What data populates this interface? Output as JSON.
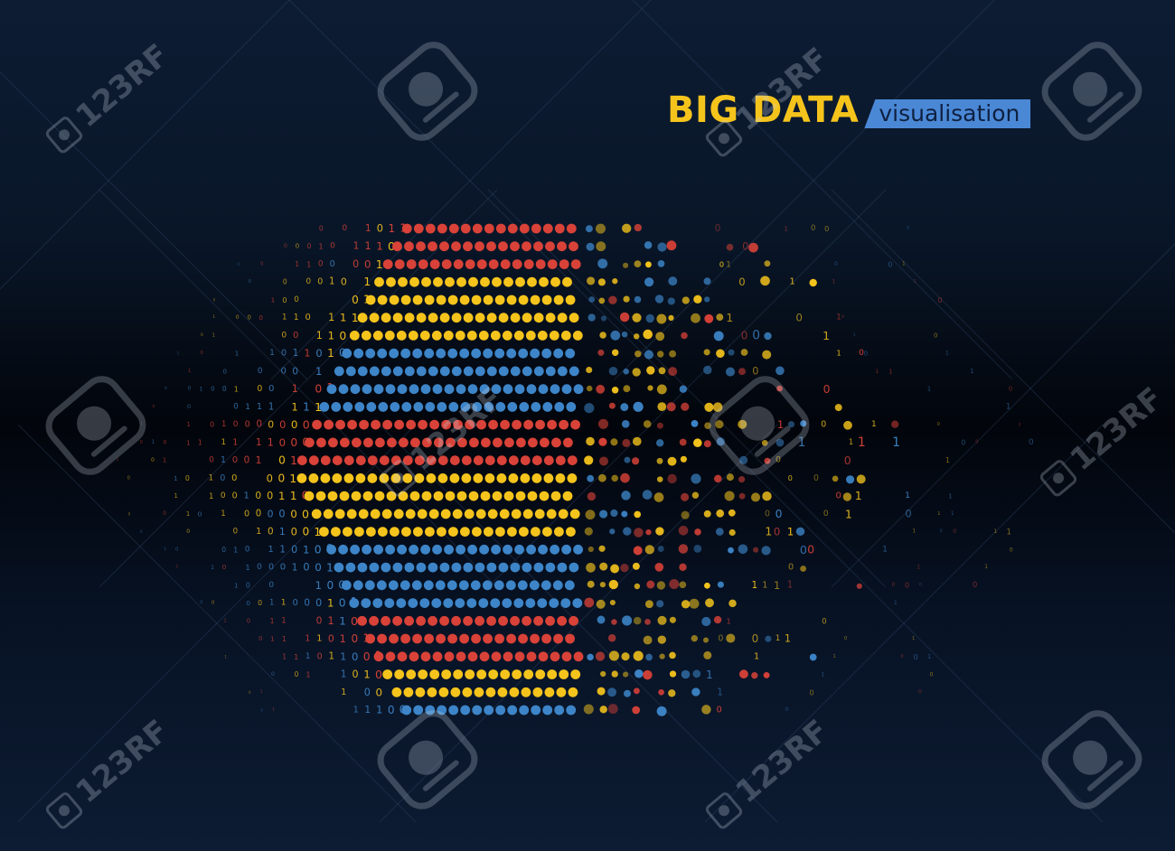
{
  "title": {
    "main": "BIG DATA",
    "sub": "visualisation"
  },
  "watermark": {
    "text": "123RF"
  },
  "colors": {
    "yellow": "#f5c41c",
    "red": "#d94238",
    "blue": "#3d85c8",
    "subtitle_bar": "#4a88d6",
    "background_top": "#0d1c33",
    "background_middle": "#02050b"
  },
  "icons": {
    "watermark_badge": "stock-badge-icon",
    "watermark_camera": "camera-icon"
  }
}
